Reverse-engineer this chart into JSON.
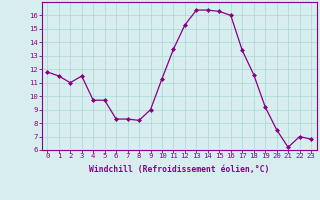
{
  "x": [
    0,
    1,
    2,
    3,
    4,
    5,
    6,
    7,
    8,
    9,
    10,
    11,
    12,
    13,
    14,
    15,
    16,
    17,
    18,
    19,
    20,
    21,
    22,
    23
  ],
  "y": [
    11.8,
    11.5,
    11.0,
    11.5,
    9.7,
    9.7,
    8.3,
    8.3,
    8.2,
    9.0,
    11.3,
    13.5,
    15.3,
    16.4,
    16.4,
    16.3,
    16.0,
    13.4,
    11.6,
    9.2,
    7.5,
    6.2,
    7.0,
    6.8
  ],
  "line_color": "#880088",
  "marker": "D",
  "marker_size": 2.0,
  "linewidth": 0.9,
  "bg_color": "#d8eeee",
  "grid_color": "#aad8d8",
  "xlabel": "Windchill (Refroidissement éolien,°C)",
  "xlabel_color": "#880088",
  "tick_color": "#880088",
  "ylim": [
    6,
    17
  ],
  "xlim_min": -0.5,
  "xlim_max": 23.5,
  "yticks": [
    6,
    7,
    8,
    9,
    10,
    11,
    12,
    13,
    14,
    15,
    16
  ],
  "xticks": [
    0,
    1,
    2,
    3,
    4,
    5,
    6,
    7,
    8,
    9,
    10,
    11,
    12,
    13,
    14,
    15,
    16,
    17,
    18,
    19,
    20,
    21,
    22,
    23
  ],
  "spine_color": "#880088",
  "axis_bg": "#d8eeee",
  "tick_fontsize": 5.2,
  "xlabel_fontsize": 5.8,
  "xlabel_fontweight": "bold"
}
